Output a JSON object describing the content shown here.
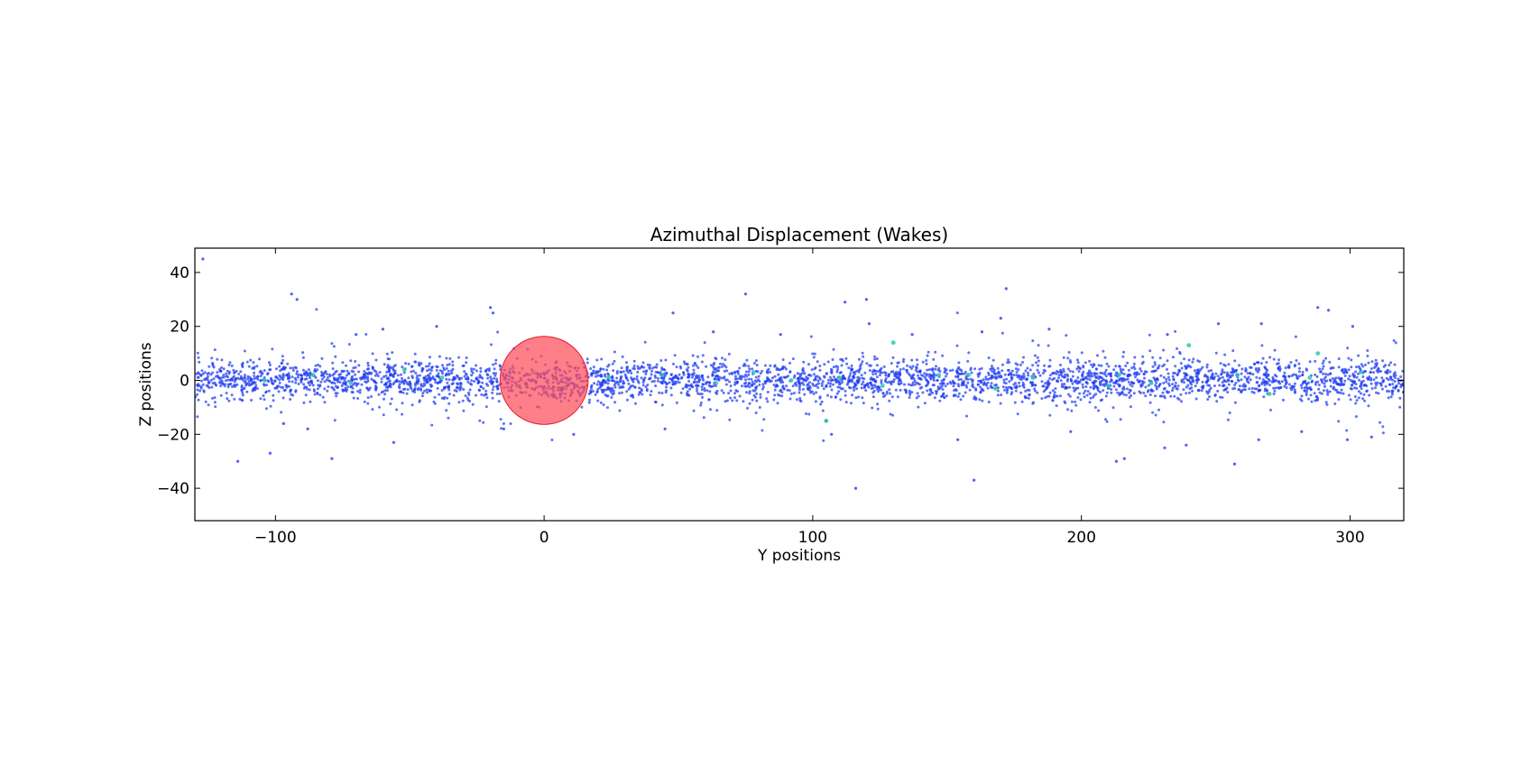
{
  "chart_data": {
    "type": "scatter",
    "title": "Azimuthal Displacement (Wakes)",
    "xlabel": "Y positions",
    "ylabel": "Z positions",
    "xlim": [
      -130,
      320
    ],
    "ylim": [
      -52,
      49
    ],
    "xticks": [
      -100,
      0,
      100,
      200,
      300
    ],
    "yticks": [
      -40,
      -20,
      0,
      20,
      40
    ],
    "xtick_labels": [
      "−100",
      "0",
      "100",
      "200",
      "300"
    ],
    "ytick_labels": [
      "−40",
      "−20",
      "0",
      "20",
      "40"
    ],
    "grid": false,
    "legend": "none",
    "colors": {
      "points": "#1f3bf0",
      "highlight_points": "#2ec7b0",
      "moon": "#ff4d5a"
    },
    "moon": {
      "x": 0,
      "y": 0,
      "radius": 15
    },
    "band": {
      "x_range": [
        -130,
        320
      ],
      "core_sigma": 3.6,
      "count": 3800
    },
    "outliers": [
      [
        -127,
        45
      ],
      [
        -94,
        32
      ],
      [
        -92,
        30
      ],
      [
        -114,
        -30
      ],
      [
        -102,
        -27
      ],
      [
        -79,
        -29
      ],
      [
        -56,
        -23
      ],
      [
        -40,
        20
      ],
      [
        -20,
        27
      ],
      [
        -19,
        25
      ],
      [
        48,
        25
      ],
      [
        75,
        32
      ],
      [
        112,
        29
      ],
      [
        120,
        30
      ],
      [
        121,
        21
      ],
      [
        172,
        34
      ],
      [
        170,
        23
      ],
      [
        288,
        27
      ],
      [
        292,
        26
      ],
      [
        301,
        20
      ],
      [
        105,
        -15
      ],
      [
        107,
        -20
      ],
      [
        116,
        -40
      ],
      [
        160,
        -37
      ],
      [
        213,
        -30
      ],
      [
        216,
        -29
      ],
      [
        231,
        -25
      ],
      [
        239,
        -24
      ],
      [
        257,
        -31
      ],
      [
        266,
        -22
      ],
      [
        282,
        -19
      ],
      [
        299,
        -22
      ],
      [
        308,
        -21
      ],
      [
        196,
        -19
      ],
      [
        154,
        -22
      ],
      [
        45,
        -18
      ],
      [
        11,
        -20
      ],
      [
        -15,
        -18
      ],
      [
        -88,
        -18
      ],
      [
        -97,
        -16
      ],
      [
        63,
        18
      ],
      [
        88,
        17
      ],
      [
        163,
        18
      ],
      [
        188,
        19
      ],
      [
        232,
        17
      ],
      [
        251,
        21
      ],
      [
        267,
        21
      ],
      [
        -60,
        19
      ],
      [
        -70,
        17
      ],
      [
        137,
        17
      ]
    ],
    "highlight_points": [
      [
        105,
        -15
      ],
      [
        130,
        14
      ],
      [
        240,
        13
      ],
      [
        288,
        10
      ],
      [
        -52,
        4
      ],
      [
        -38,
        1
      ],
      [
        -10,
        -2
      ],
      [
        -4,
        3
      ],
      [
        8,
        -3
      ],
      [
        24,
        1
      ],
      [
        44,
        2
      ],
      [
        64,
        -1
      ],
      [
        78,
        3
      ],
      [
        92,
        0
      ],
      [
        126,
        -2
      ],
      [
        147,
        2
      ],
      [
        168,
        -3
      ],
      [
        182,
        1
      ],
      [
        214,
        2
      ],
      [
        226,
        -1
      ],
      [
        258,
        2
      ],
      [
        270,
        -5
      ],
      [
        285,
        1
      ],
      [
        304,
        3
      ],
      [
        -104,
        0
      ],
      [
        -86,
        2
      ],
      [
        -72,
        -1
      ],
      [
        210,
        -2
      ],
      [
        158,
        2
      ],
      [
        110,
        1
      ]
    ]
  }
}
